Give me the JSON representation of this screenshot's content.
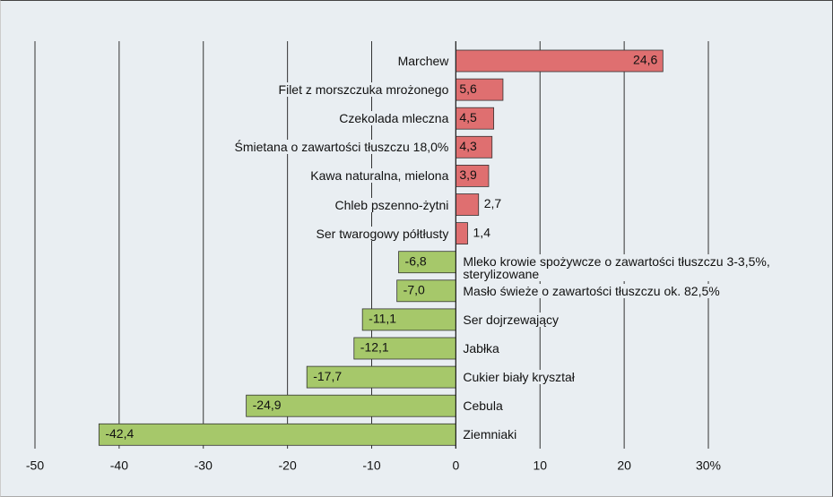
{
  "chart_data": {
    "type": "barh",
    "categories": [
      "Marchew",
      "Filet z morszczuka mrożonego",
      "Czekolada mleczna",
      "Śmietana o zawartości tłuszczu 18,0%",
      "Kawa naturalna, mielona",
      "Chleb  pszenno-żytni",
      "Ser twarogowy półtłusty",
      "Mleko krowie spożywcze o zawartości tłuszczu 3-3,5%, sterylizowane",
      "Masło świeże o zawartości tłuszczu ok. 82,5%",
      "Ser dojrzewający",
      "Jabłka",
      "Cukier biały kryształ",
      "Cebula",
      "Ziemniaki"
    ],
    "values": [
      24.6,
      5.6,
      4.5,
      4.3,
      3.9,
      2.7,
      1.4,
      -6.8,
      -7.0,
      -11.1,
      -12.1,
      -17.7,
      -24.9,
      -42.4
    ],
    "value_labels": [
      "24,6",
      "5,6",
      "4,5",
      "4,3",
      "3,9",
      "2,7",
      "1,4",
      "-6,8",
      "-7,0",
      "-11,1",
      "-12,1",
      "-17,7",
      "-24,9",
      "-42,4"
    ],
    "positive_color": "#df6f70",
    "negative_color": "#a6c86a",
    "xlim": [
      -50,
      30
    ],
    "xticks": [
      -50,
      -40,
      -30,
      -20,
      -10,
      0,
      10,
      20,
      {
        "value": 30,
        "label": "30%"
      }
    ],
    "grid": true
  }
}
